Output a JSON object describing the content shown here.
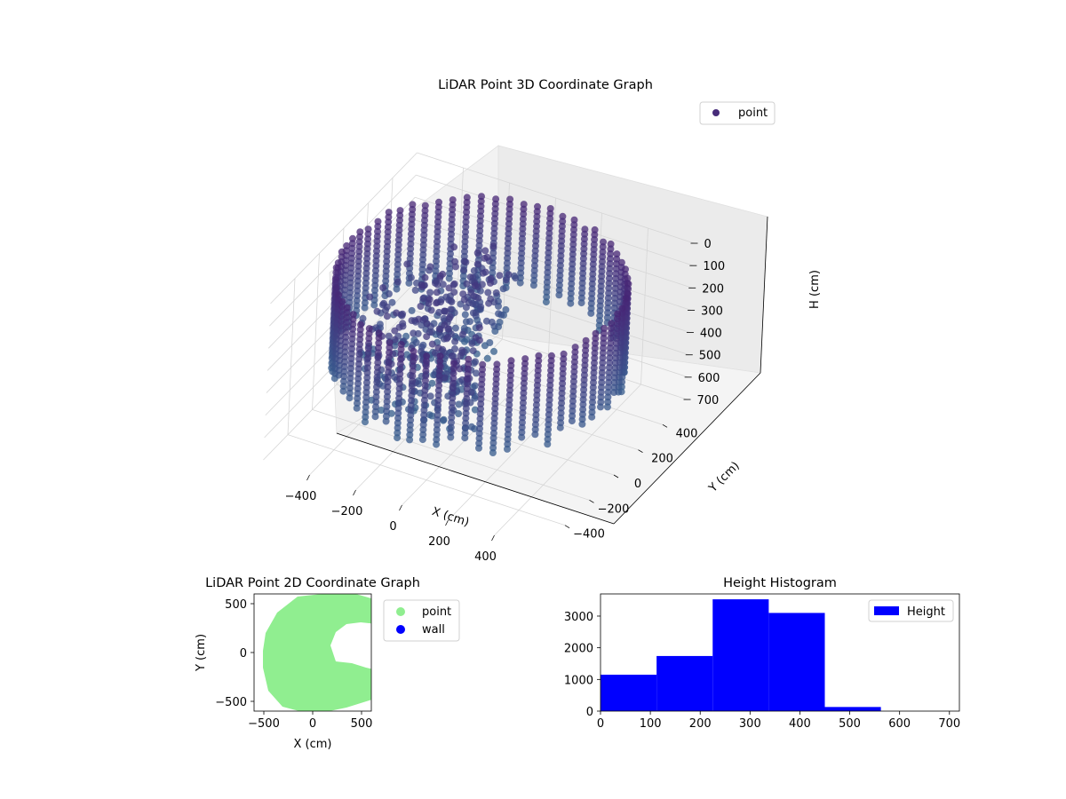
{
  "chart_data": [
    {
      "type": "scatter",
      "title": "LiDAR Point 3D Coordinate Graph",
      "xlabel": "X (cm)",
      "ylabel": "Y (cm)",
      "zlabel": "H (cm)",
      "xlim": [
        -600,
        600
      ],
      "ylim": [
        -600,
        600
      ],
      "zlim": [
        0,
        700
      ],
      "z_inverted": true,
      "xticks": [
        "−400",
        "−200",
        "0",
        "200",
        "400"
      ],
      "yticks": [
        "−400",
        "−200",
        "0",
        "200",
        "400"
      ],
      "zticks": [
        "0",
        "100",
        "200",
        "300",
        "400",
        "500",
        "600",
        "700"
      ],
      "colormap": "viridis",
      "legend": [
        "point"
      ],
      "legend_position": "top-right",
      "grid": true,
      "description_points": "cylindrical wall of points at radius ~560 cm, heights 0-450 cm, plus interior clutter"
    },
    {
      "type": "scatter",
      "title": "LiDAR Point 2D Coordinate Graph",
      "xlabel": "X (cm)",
      "ylabel": "Y (cm)",
      "xlim": [
        -600,
        600
      ],
      "ylim": [
        -600,
        600
      ],
      "xticks": [
        "−500",
        "0",
        "500"
      ],
      "yticks": [
        "−500",
        "0",
        "500"
      ],
      "series": [
        {
          "name": "point",
          "color": "#90ee90"
        },
        {
          "name": "wall",
          "color": "#0000ff"
        }
      ],
      "legend_position": "outside-right"
    },
    {
      "type": "bar",
      "title": "Height Histogram",
      "bin_edges": [
        0,
        112.5,
        225,
        337.5,
        450,
        562.5,
        675
      ],
      "values": [
        1150,
        1740,
        3530,
        3100,
        130,
        0
      ],
      "xlim": [
        0,
        720
      ],
      "ylim": [
        0,
        3700
      ],
      "xticks": [
        "0",
        "100",
        "200",
        "300",
        "400",
        "500",
        "600",
        "700"
      ],
      "yticks": [
        "0",
        "1000",
        "2000",
        "3000"
      ],
      "legend": [
        "Height"
      ],
      "legend_position": "top-right",
      "color": "#0000ff"
    }
  ]
}
